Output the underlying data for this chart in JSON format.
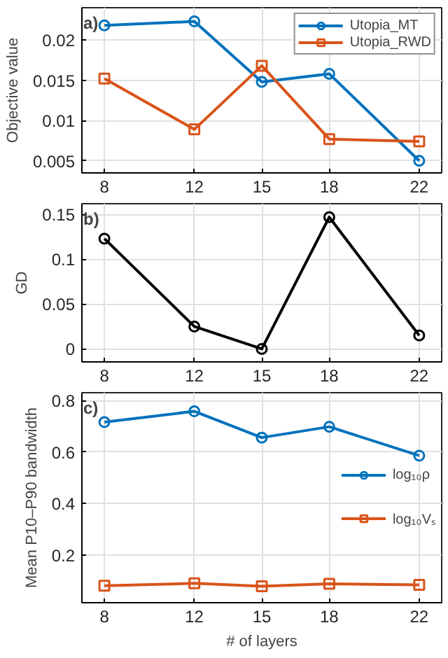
{
  "chart_data": [
    {
      "type": "line",
      "ylabel": "Objective value",
      "annotations": [
        "a)"
      ],
      "x": [
        8,
        12,
        15,
        18,
        22
      ],
      "xlim": [
        7,
        23
      ],
      "xticks": [
        8,
        12,
        15,
        18,
        22
      ],
      "ylim": [
        0.0035,
        0.024
      ],
      "yticks": [
        0.005,
        0.01,
        0.015,
        0.02
      ],
      "grid": true,
      "legend": "top right",
      "series": [
        {
          "name": "Utopia_MT",
          "color": "#0072bd",
          "marker": "circle",
          "values": [
            0.0218,
            0.0223,
            0.0148,
            0.0158,
            0.005
          ]
        },
        {
          "name": "Utopia_RWD",
          "color": "#d95319",
          "marker": "square",
          "values": [
            0.0152,
            0.0089,
            0.0168,
            0.0077,
            0.0074
          ]
        }
      ]
    },
    {
      "type": "line",
      "ylabel": "GD",
      "annotations": [
        "b)"
      ],
      "x": [
        8,
        12,
        15,
        18,
        22
      ],
      "xlim": [
        7,
        23
      ],
      "xticks": [
        8,
        12,
        15,
        18,
        22
      ],
      "ylim": [
        -0.0145,
        0.162
      ],
      "yticks": [
        0,
        0.05,
        0.1,
        0.15
      ],
      "grid": true,
      "legend": false,
      "series": [
        {
          "color": "#000000",
          "marker": "circle",
          "values": [
            0.123,
            0.025,
            0,
            0.147,
            0.015
          ]
        }
      ]
    },
    {
      "type": "line",
      "ylabel": "Mean P10–P90 bandwidth",
      "xlabel": "# of layers",
      "annotations": [
        "c)"
      ],
      "x": [
        8,
        12,
        15,
        18,
        22
      ],
      "xlim": [
        7,
        23
      ],
      "xticks": [
        8,
        12,
        15,
        18,
        22
      ],
      "ylim": [
        0.016,
        0.83
      ],
      "yticks": [
        0.2,
        0.4,
        0.6,
        0.8
      ],
      "grid": true,
      "legend": "right",
      "series": [
        {
          "name": "log₁₀ρ",
          "color": "#0072bd",
          "marker": "circle",
          "values": [
            0.716,
            0.758,
            0.656,
            0.698,
            0.586
          ]
        },
        {
          "name": "log₁₀Vₛ",
          "color": "#d95319",
          "marker": "square",
          "values": [
            0.082,
            0.091,
            0.08,
            0.089,
            0.085
          ]
        }
      ]
    }
  ]
}
